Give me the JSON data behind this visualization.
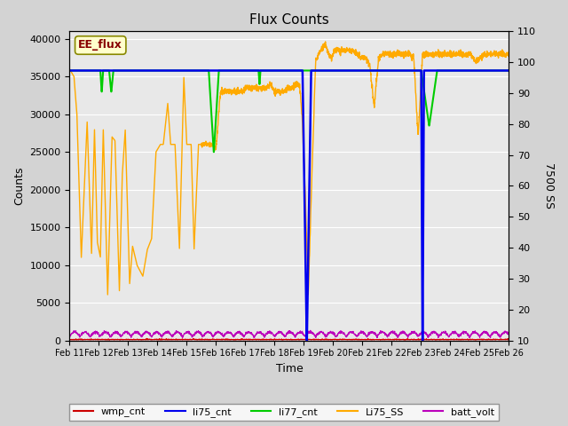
{
  "title": "Flux Counts",
  "xlabel": "Time",
  "ylabel_left": "Counts",
  "ylabel_right": "7500 SS",
  "annotation": "EE_flux",
  "xlim": [
    0,
    15
  ],
  "ylim_left": [
    0,
    41000
  ],
  "ylim_right": [
    10,
    110
  ],
  "yticks_left": [
    0,
    5000,
    10000,
    15000,
    20000,
    25000,
    30000,
    35000,
    40000
  ],
  "yticks_right": [
    10,
    20,
    30,
    40,
    50,
    60,
    70,
    80,
    90,
    100,
    110
  ],
  "xtick_labels": [
    "Feb 11",
    "Feb 12",
    "Feb 13",
    "Feb 14",
    "Feb 15",
    "Feb 16",
    "Feb 17",
    "Feb 18",
    "Feb 19",
    "Feb 20",
    "Feb 21",
    "Feb 22",
    "Feb 23",
    "Feb 24",
    "Feb 25",
    "Feb 26"
  ],
  "bg_color": "#d3d3d3",
  "plot_bg_color": "#e8e8e8",
  "li77_flat": 35800,
  "li75_flat": 35800,
  "ss_high": 38200,
  "batt_base": 700,
  "legend_labels": [
    "wmp_cnt",
    "li75_cnt",
    "li77_cnt",
    "Li75_SS",
    "batt_volt"
  ],
  "legend_colors": [
    "#cc0000",
    "#0000ee",
    "#00cc00",
    "#ffaa00",
    "#bb00bb"
  ]
}
